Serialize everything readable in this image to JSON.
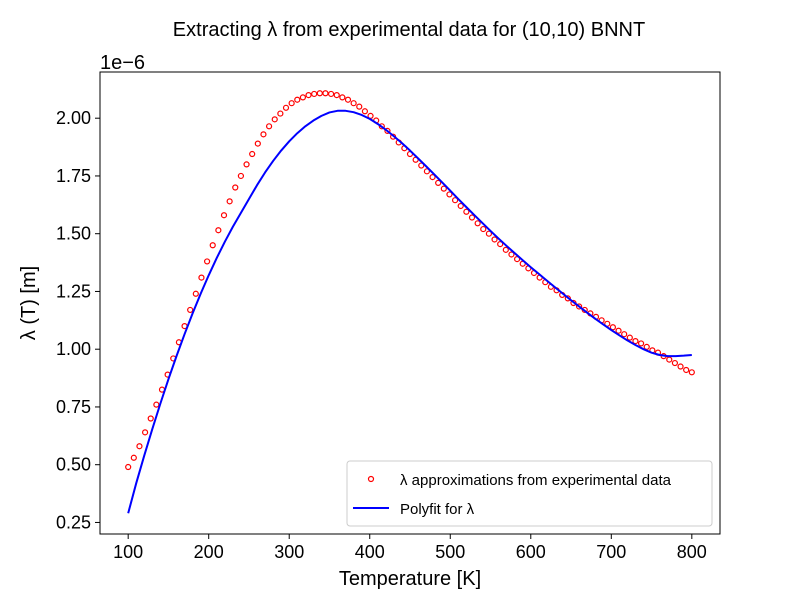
{
  "chart_data": {
    "type": "scatter",
    "title": "Extracting λ from experimental data for (10,10) BNNT",
    "xlabel": "Temperature [K]",
    "ylabel": "λ (T) [m]",
    "y_offset_label": "1e−6",
    "xlim": [
      65,
      835
    ],
    "ylim": [
      2e-07,
      2.2e-06
    ],
    "xticks": [
      {
        "value": 100,
        "label": "100"
      },
      {
        "value": 200,
        "label": "200"
      },
      {
        "value": 300,
        "label": "300"
      },
      {
        "value": 400,
        "label": "400"
      },
      {
        "value": 500,
        "label": "500"
      },
      {
        "value": 600,
        "label": "600"
      },
      {
        "value": 700,
        "label": "700"
      },
      {
        "value": 800,
        "label": "800"
      }
    ],
    "yticks": [
      {
        "value": 2.5e-07,
        "label": "0.25"
      },
      {
        "value": 5e-07,
        "label": "0.50"
      },
      {
        "value": 7.5e-07,
        "label": "0.75"
      },
      {
        "value": 1e-06,
        "label": "1.00"
      },
      {
        "value": 1.25e-06,
        "label": "1.25"
      },
      {
        "value": 1.5e-06,
        "label": "1.50"
      },
      {
        "value": 1.75e-06,
        "label": "1.75"
      },
      {
        "value": 2e-06,
        "label": "2.00"
      }
    ],
    "grid": false,
    "legend_position": "lower-right",
    "series": [
      {
        "name": "λ approximations from experimental data",
        "kind": "scatter",
        "marker": "hollow-circle",
        "color": "#ff0000",
        "x": [
          100,
          107,
          114,
          121,
          128,
          135,
          142,
          149,
          156,
          163,
          170,
          177,
          184,
          191,
          198,
          205,
          212,
          219,
          226,
          233,
          240,
          247,
          254,
          261,
          268,
          275,
          282,
          289,
          296,
          303,
          310,
          317,
          324,
          331,
          338,
          345,
          352,
          359,
          366,
          373,
          380,
          387,
          394,
          401,
          408,
          415,
          422,
          429,
          436,
          443,
          450,
          457,
          464,
          471,
          478,
          485,
          492,
          499,
          506,
          513,
          520,
          527,
          534,
          541,
          548,
          555,
          562,
          569,
          576,
          583,
          590,
          597,
          604,
          611,
          618,
          625,
          632,
          639,
          646,
          653,
          660,
          667,
          674,
          681,
          688,
          695,
          702,
          709,
          716,
          723,
          730,
          737,
          744,
          751,
          758,
          765,
          772,
          779,
          786,
          793,
          800
        ],
        "y": [
          4.9e-07,
          5.3e-07,
          5.8e-07,
          6.4e-07,
          7e-07,
          7.6e-07,
          8.25e-07,
          8.9e-07,
          9.6e-07,
          1.03e-06,
          1.1e-06,
          1.17e-06,
          1.24e-06,
          1.31e-06,
          1.38e-06,
          1.45e-06,
          1.515e-06,
          1.58e-06,
          1.64e-06,
          1.7e-06,
          1.75e-06,
          1.8e-06,
          1.845e-06,
          1.89e-06,
          1.93e-06,
          1.965e-06,
          1.995e-06,
          2.02e-06,
          2.045e-06,
          2.065e-06,
          2.08e-06,
          2.09e-06,
          2.1e-06,
          2.105e-06,
          2.108e-06,
          2.108e-06,
          2.105e-06,
          2.1e-06,
          2.09e-06,
          2.08e-06,
          2.065e-06,
          2.05e-06,
          2.03e-06,
          2.01e-06,
          1.99e-06,
          1.965e-06,
          1.945e-06,
          1.92e-06,
          1.895e-06,
          1.87e-06,
          1.845e-06,
          1.82e-06,
          1.795e-06,
          1.77e-06,
          1.745e-06,
          1.72e-06,
          1.695e-06,
          1.67e-06,
          1.645e-06,
          1.62e-06,
          1.595e-06,
          1.57e-06,
          1.545e-06,
          1.52e-06,
          1.5e-06,
          1.475e-06,
          1.455e-06,
          1.43e-06,
          1.41e-06,
          1.39e-06,
          1.37e-06,
          1.35e-06,
          1.33e-06,
          1.31e-06,
          1.29e-06,
          1.27e-06,
          1.255e-06,
          1.235e-06,
          1.22e-06,
          1.2e-06,
          1.185e-06,
          1.17e-06,
          1.155e-06,
          1.14e-06,
          1.125e-06,
          1.11e-06,
          1.095e-06,
          1.08e-06,
          1.065e-06,
          1.05e-06,
          1.035e-06,
          1.025e-06,
          1.01e-06,
          9.95e-07,
          9.85e-07,
          9.7e-07,
          9.55e-07,
          9.4e-07,
          9.25e-07,
          9.1e-07,
          9e-07
        ]
      },
      {
        "name": "Polyfit for λ",
        "kind": "line",
        "color": "#0000ff",
        "x": [
          100,
          110,
          120,
          130,
          140,
          150,
          160,
          170,
          180,
          190,
          200,
          210,
          220,
          230,
          240,
          250,
          260,
          270,
          280,
          290,
          300,
          310,
          320,
          330,
          340,
          350,
          360,
          370,
          380,
          390,
          400,
          410,
          420,
          430,
          440,
          450,
          460,
          470,
          480,
          490,
          500,
          510,
          520,
          530,
          540,
          550,
          560,
          570,
          580,
          590,
          600,
          610,
          620,
          630,
          640,
          650,
          660,
          670,
          680,
          690,
          700,
          710,
          720,
          730,
          740,
          750,
          760,
          770,
          780,
          790,
          800
        ],
        "y": [
          2.9e-07,
          4.2e-07,
          5.4e-07,
          6.55e-07,
          7.65e-07,
          8.7e-07,
          9.7e-07,
          1.065e-06,
          1.155e-06,
          1.24e-06,
          1.32e-06,
          1.395e-06,
          1.465e-06,
          1.53e-06,
          1.59e-06,
          1.65e-06,
          1.71e-06,
          1.765e-06,
          1.815e-06,
          1.86e-06,
          1.9e-06,
          1.935e-06,
          1.965e-06,
          1.99e-06,
          2.01e-06,
          2.025e-06,
          2.032e-06,
          2.032e-06,
          2.026e-06,
          2.014e-06,
          1.997e-06,
          1.975e-06,
          1.95e-06,
          1.922e-06,
          1.892e-06,
          1.86e-06,
          1.826e-06,
          1.792e-06,
          1.757e-06,
          1.722e-06,
          1.686e-06,
          1.65e-06,
          1.615e-06,
          1.58e-06,
          1.546e-06,
          1.512e-06,
          1.479e-06,
          1.447e-06,
          1.416e-06,
          1.385e-06,
          1.355e-06,
          1.326e-06,
          1.297e-06,
          1.268e-06,
          1.24e-06,
          1.212e-06,
          1.185e-06,
          1.158e-06,
          1.132e-06,
          1.107e-06,
          1.083e-06,
          1.06e-06,
          1.038e-06,
          1.018e-06,
          1e-06,
          9.85e-07,
          9.75e-07,
          9.7e-07,
          9.7e-07,
          9.72e-07,
          9.75e-07
        ]
      }
    ]
  }
}
